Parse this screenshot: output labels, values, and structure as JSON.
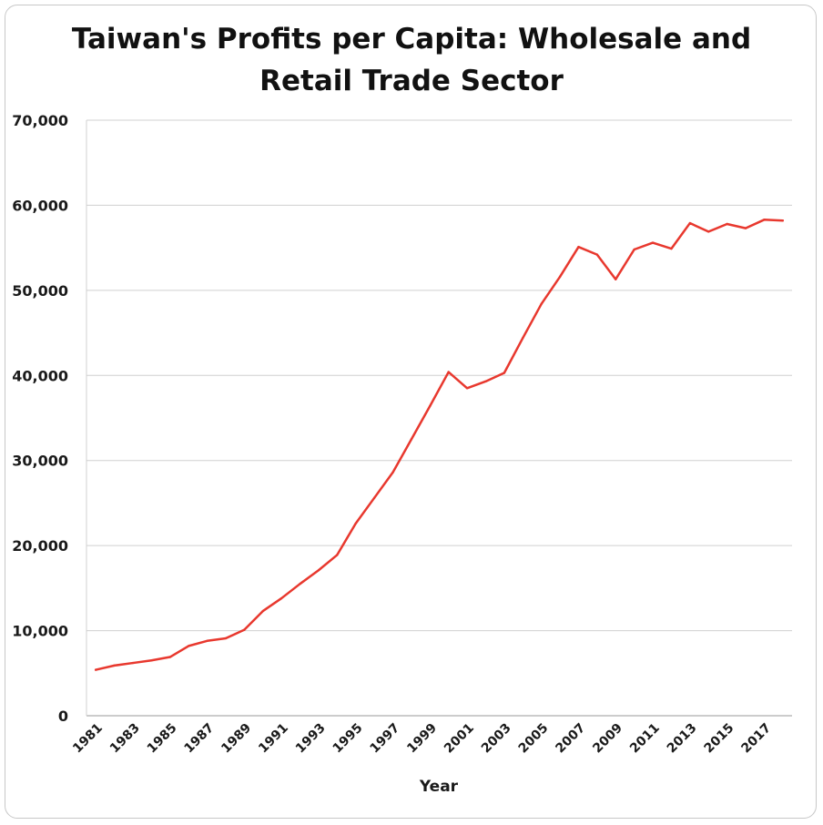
{
  "chart_data": {
    "type": "line",
    "title_line1": "Taiwan's Profits per Capita: Wholesale and",
    "title_line2": "Retail Trade Sector",
    "xlabel": "Year",
    "ylabel": "",
    "ylim": [
      0,
      70000
    ],
    "yticks": [
      0,
      10000,
      20000,
      30000,
      40000,
      50000,
      60000,
      70000
    ],
    "ytick_labels": [
      "0",
      "10,000",
      "20,000",
      "30,000",
      "40,000",
      "50,000",
      "60,000",
      "70,000"
    ],
    "xtick_labels": [
      "1981",
      "1983",
      "1985",
      "1987",
      "1989",
      "1991",
      "1993",
      "1995",
      "1997",
      "1999",
      "2001",
      "2003",
      "2005",
      "2007",
      "2009",
      "2011",
      "2013",
      "2015",
      "2017"
    ],
    "grid": true,
    "series": [
      {
        "name": "Profits per Capita",
        "color": "#e8382e",
        "x": [
          1981,
          1982,
          1983,
          1984,
          1985,
          1986,
          1987,
          1988,
          1989,
          1990,
          1991,
          1992,
          1993,
          1994,
          1995,
          1996,
          1997,
          1998,
          1999,
          2000,
          2001,
          2002,
          2003,
          2004,
          2005,
          2006,
          2007,
          2008,
          2009,
          2010,
          2011,
          2012,
          2013,
          2014,
          2015,
          2016,
          2017,
          2018
        ],
        "values": [
          5400,
          5900,
          6200,
          6500,
          6900,
          8200,
          8800,
          9100,
          10100,
          12300,
          13800,
          15500,
          17100,
          18900,
          22600,
          25600,
          28600,
          32500,
          36400,
          40400,
          38500,
          39300,
          40300,
          44400,
          48400,
          51600,
          55100,
          54200,
          51300,
          54800,
          55600,
          54900,
          57900,
          56900,
          57800,
          57300,
          58300,
          58200
        ]
      }
    ]
  }
}
